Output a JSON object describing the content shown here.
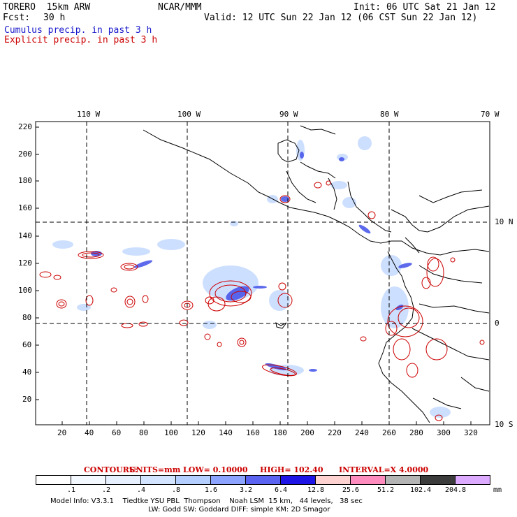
{
  "header": {
    "model": "TORERO  15km ARW",
    "org": "NCAR/MMM",
    "init": "Init: 06 UTC Sat 21 Jan 12",
    "fcst_label": "Fcst:",
    "fcst_value": "30 h",
    "valid": "Valid: 12 UTC Sun 22 Jan 12 (06 CST Sun 22 Jan 12)",
    "cumulus": "Cumulus precip. in past 3 h",
    "explicit": "Explicit precip. in past 3 h",
    "cumulus_color": "#1a1acc",
    "explicit_color": "#cc0000"
  },
  "map": {
    "lon_labels": [
      "110 W",
      "100 W",
      "90 W",
      "80 W",
      "70 W"
    ],
    "lat_labels": [
      "10 N",
      "0",
      "10 S"
    ],
    "y_ticks": [
      "220",
      "200",
      "180",
      "160",
      "140",
      "120",
      "100",
      "80",
      "60",
      "40",
      "20"
    ],
    "x_ticks": [
      "20",
      "40",
      "60",
      "80",
      "100",
      "120",
      "140",
      "160",
      "180",
      "200",
      "220",
      "240",
      "260",
      "280",
      "300",
      "320"
    ],
    "coast_color": "#000000",
    "gridline": "dashed"
  },
  "contours_info": {
    "label": "CONTOURS:",
    "units": "UNITS=mm",
    "low": "LOW= 0.10000",
    "high": "HIGH= 102.40",
    "interval": "INTERVAL=X 4.0000"
  },
  "legend": {
    "ticks": [
      ".1",
      ".2",
      ".4",
      ".8",
      "1.6",
      "3.2",
      "6.4",
      "12.8",
      "25.6",
      "51.2",
      "102.4",
      "204.8"
    ],
    "unit": "mm",
    "colors": [
      "#ffffff",
      "#f4f8ff",
      "#e6f0ff",
      "#d2e4ff",
      "#b4ceff",
      "#8ca4ff",
      "#5a64f0",
      "#1e14e6",
      "#ffd2d2",
      "#ff8cbe",
      "#b4b4b4",
      "#3c3c3c",
      "#dcaaff"
    ]
  },
  "footer": {
    "line1": "Model Info: V3.3.1    Tiedtke YSU PBL  Thompson    Noah LSM  15 km,   44 levels,   38 sec",
    "line2": "LW: Godd SW: Goddard DIFF: simple KM: 2D Smagor"
  }
}
